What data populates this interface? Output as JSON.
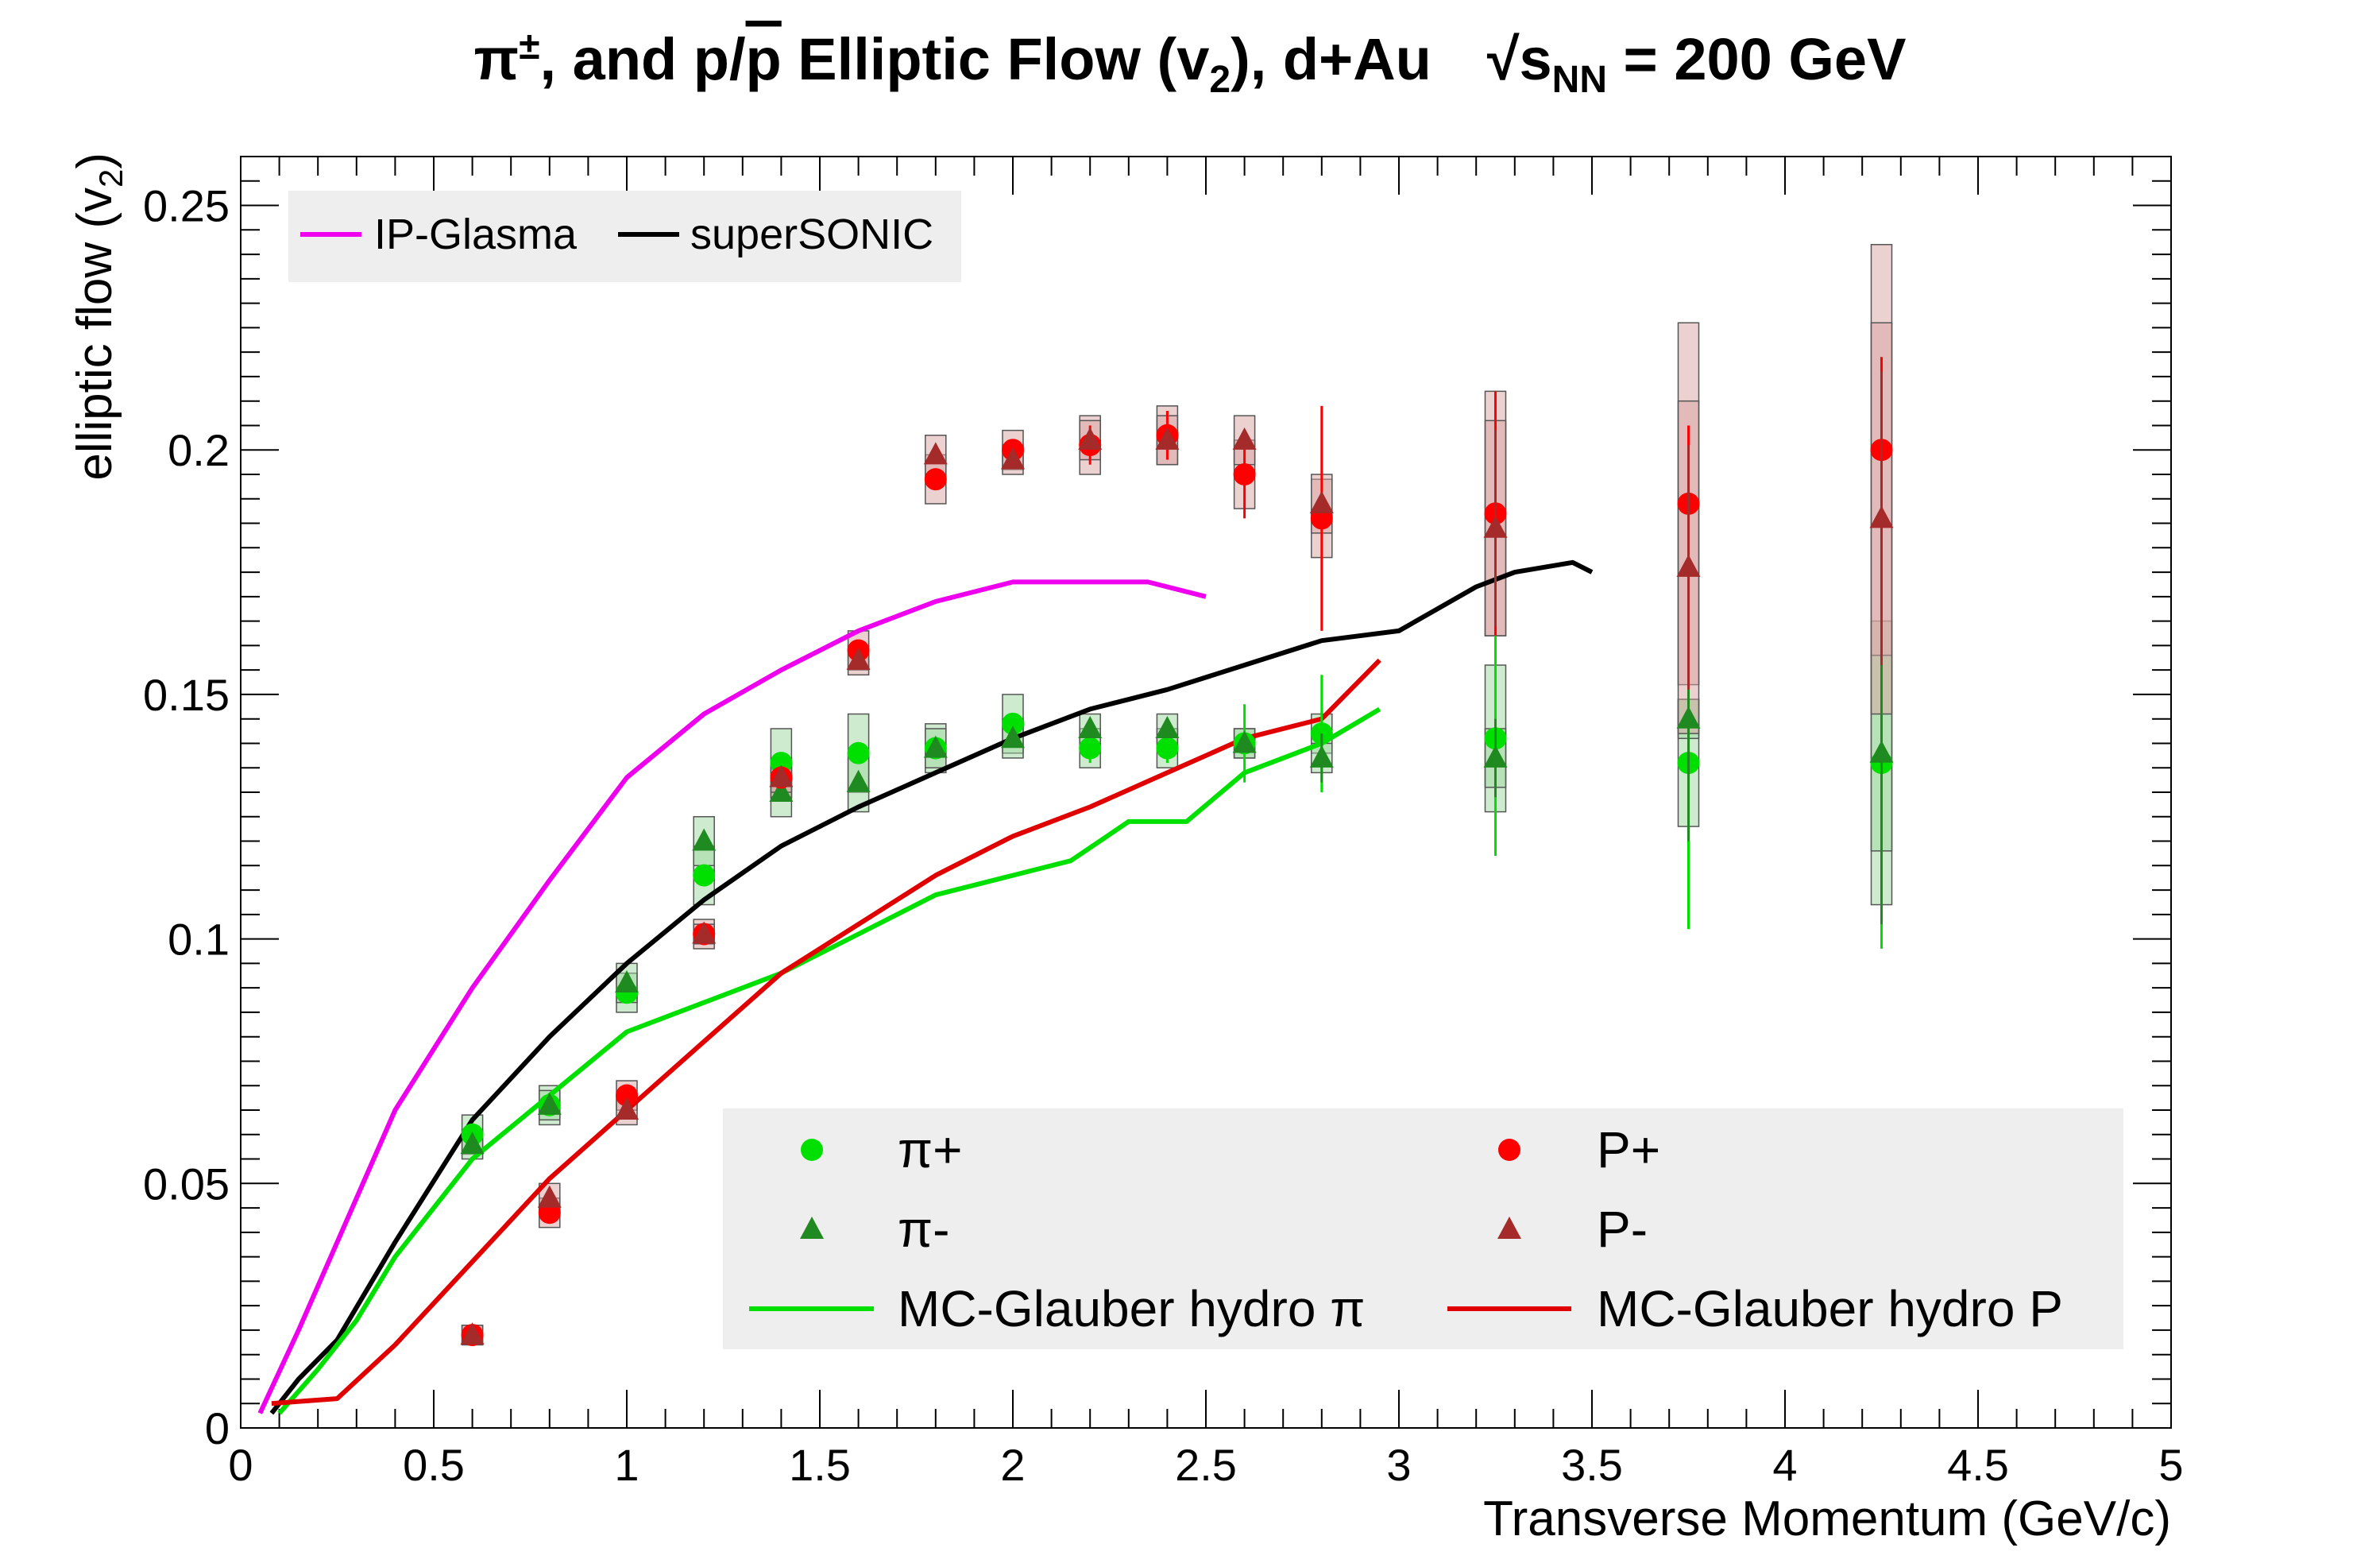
{
  "chart_data": {
    "type": "scatter",
    "title": {
      "part1": "π",
      "part1_sup": "±",
      "part2": ", and p/",
      "pbar": "p",
      "part3": " Elliptic Flow (v",
      "part3_sub": "2",
      "part4": "), d+Au",
      "energy_prefix": "√s",
      "energy_sub": "NN",
      "energy_suffix": " = 200 GeV"
    },
    "xlabel": "Transverse Momentum (GeV/c)",
    "ylabel": "elliptic flow (v",
    "ylabel_sub": "2",
    "ylabel_end": ")",
    "xlim": [
      0,
      5
    ],
    "ylim": [
      0,
      0.26
    ],
    "x_ticks": [
      "0",
      "0.5",
      "1",
      "1.5",
      "2",
      "2.5",
      "3",
      "3.5",
      "4",
      "4.5",
      "5"
    ],
    "y_ticks": [
      "0",
      "0.05",
      "0.1",
      "0.15",
      "0.2",
      "0.25"
    ],
    "grid": false,
    "colors": {
      "pi_plus": "#00e000",
      "pi_minus": "#1f8a1f",
      "p_plus": "#ff0000",
      "p_minus": "#a52a2a",
      "glauber_pi": "#00e000",
      "glauber_p": "#e00000",
      "ipglasma": "#ee00ee",
      "supersonic": "#000000",
      "sys_green": "#9fd89f",
      "sys_red": "#d9a3a3",
      "legend_bg": "#eeeeee"
    },
    "legend_top": {
      "placement": "top-left",
      "entries": [
        "IP-Glasma",
        "superSONIC"
      ]
    },
    "legend_bottom": {
      "placement": "bottom-right",
      "entries": [
        "π+",
        "π-",
        "MC-Glauber hydro π",
        "P+",
        "P-",
        "MC-Glauber hydro P"
      ]
    },
    "series": [
      {
        "name": "π+",
        "marker": "circle",
        "color": "#00e000",
        "points": [
          {
            "x": 0.6,
            "y": 0.06,
            "err": 0,
            "sys": 0.004
          },
          {
            "x": 0.8,
            "y": 0.066,
            "err": 0,
            "sys": 0.004
          },
          {
            "x": 1.0,
            "y": 0.089,
            "err": 0,
            "sys": 0.004
          },
          {
            "x": 1.2,
            "y": 0.113,
            "err": 0,
            "sys": 0.006
          },
          {
            "x": 1.4,
            "y": 0.136,
            "err": 0,
            "sys": 0.007
          },
          {
            "x": 1.6,
            "y": 0.138,
            "err": 0,
            "sys": 0.008
          },
          {
            "x": 1.8,
            "y": 0.139,
            "err": 0,
            "sys": 0.005
          },
          {
            "x": 2.0,
            "y": 0.144,
            "err": 0,
            "sys": 0.006
          },
          {
            "x": 2.2,
            "y": 0.139,
            "err": 0.003,
            "sys": 0.004
          },
          {
            "x": 2.4,
            "y": 0.139,
            "err": 0.003,
            "sys": 0.004
          },
          {
            "x": 2.6,
            "y": 0.14,
            "err": 0.008,
            "sys": 0.003
          },
          {
            "x": 2.8,
            "y": 0.142,
            "err": 0.012,
            "sys": 0.004
          },
          {
            "x": 3.25,
            "y": 0.141,
            "err": 0.024,
            "sys": 0.015
          },
          {
            "x": 3.75,
            "y": 0.136,
            "err": 0.034,
            "sys": 0.013
          },
          {
            "x": 4.25,
            "y": 0.136,
            "err": 0.038,
            "sys": 0.029
          }
        ]
      },
      {
        "name": "π-",
        "marker": "triangle",
        "color": "#1f8a1f",
        "points": [
          {
            "x": 0.6,
            "y": 0.058,
            "err": 0,
            "sys": 0.003
          },
          {
            "x": 0.8,
            "y": 0.066,
            "err": 0,
            "sys": 0.003
          },
          {
            "x": 1.0,
            "y": 0.091,
            "err": 0,
            "sys": 0.004
          },
          {
            "x": 1.2,
            "y": 0.12,
            "err": 0,
            "sys": 0.005
          },
          {
            "x": 1.4,
            "y": 0.13,
            "err": 0,
            "sys": 0.005
          },
          {
            "x": 1.6,
            "y": 0.132,
            "err": 0,
            "sys": 0.006
          },
          {
            "x": 1.8,
            "y": 0.139,
            "err": 0,
            "sys": 0.004
          },
          {
            "x": 2.0,
            "y": 0.141,
            "err": 0,
            "sys": 0.004
          },
          {
            "x": 2.2,
            "y": 0.143,
            "err": 0,
            "sys": 0.003
          },
          {
            "x": 2.4,
            "y": 0.143,
            "err": 0,
            "sys": 0.003
          },
          {
            "x": 2.6,
            "y": 0.14,
            "err": 0,
            "sys": 0.003
          },
          {
            "x": 2.8,
            "y": 0.137,
            "err": 0.005,
            "sys": 0.003
          },
          {
            "x": 3.25,
            "y": 0.137,
            "err": 0.008,
            "sys": 0.006
          },
          {
            "x": 3.75,
            "y": 0.145,
            "err": 0.025,
            "sys": 0.004
          },
          {
            "x": 4.25,
            "y": 0.138,
            "err": 0.035,
            "sys": 0.02
          }
        ]
      },
      {
        "name": "P+",
        "marker": "circle",
        "color": "#ff0000",
        "points": [
          {
            "x": 0.6,
            "y": 0.019,
            "err": 0,
            "sys": 0.002
          },
          {
            "x": 0.8,
            "y": 0.044,
            "err": 0,
            "sys": 0.003
          },
          {
            "x": 1.0,
            "y": 0.068,
            "err": 0,
            "sys": 0.003
          },
          {
            "x": 1.2,
            "y": 0.101,
            "err": 0,
            "sys": 0.003
          },
          {
            "x": 1.4,
            "y": 0.133,
            "err": 0,
            "sys": 0.004
          },
          {
            "x": 1.6,
            "y": 0.159,
            "err": 0,
            "sys": 0.004
          },
          {
            "x": 1.8,
            "y": 0.194,
            "err": 0,
            "sys": 0.005
          },
          {
            "x": 2.0,
            "y": 0.2,
            "err": 0,
            "sys": 0.004
          },
          {
            "x": 2.2,
            "y": 0.201,
            "err": 0.004,
            "sys": 0.006
          },
          {
            "x": 2.4,
            "y": 0.203,
            "err": 0.005,
            "sys": 0.006
          },
          {
            "x": 2.6,
            "y": 0.195,
            "err": 0.009,
            "sys": 0.007
          },
          {
            "x": 2.8,
            "y": 0.186,
            "err": 0.023,
            "sys": 0.008
          },
          {
            "x": 3.25,
            "y": 0.187,
            "err": 0.025,
            "sys": 0.025
          },
          {
            "x": 3.75,
            "y": 0.189,
            "err": 0.016,
            "sys": 0.037
          },
          {
            "x": 4.25,
            "y": 0.2,
            "err": 0.019,
            "sys": 0.042
          }
        ]
      },
      {
        "name": "P-",
        "marker": "triangle",
        "color": "#a52a2a",
        "points": [
          {
            "x": 0.6,
            "y": 0.019,
            "err": 0,
            "sys": 0.002
          },
          {
            "x": 0.8,
            "y": 0.047,
            "err": 0,
            "sys": 0.003
          },
          {
            "x": 1.0,
            "y": 0.065,
            "err": 0,
            "sys": 0.003
          },
          {
            "x": 1.2,
            "y": 0.101,
            "err": 0,
            "sys": 0.002
          },
          {
            "x": 1.4,
            "y": 0.133,
            "err": 0,
            "sys": 0.003
          },
          {
            "x": 1.6,
            "y": 0.157,
            "err": 0,
            "sys": 0.003
          },
          {
            "x": 1.8,
            "y": 0.199,
            "err": 0,
            "sys": 0.004
          },
          {
            "x": 2.0,
            "y": 0.198,
            "err": 0,
            "sys": 0.003
          },
          {
            "x": 2.2,
            "y": 0.202,
            "err": 0,
            "sys": 0.004
          },
          {
            "x": 2.4,
            "y": 0.202,
            "err": 0,
            "sys": 0.005
          },
          {
            "x": 2.6,
            "y": 0.202,
            "err": 0,
            "sys": 0.005
          },
          {
            "x": 2.8,
            "y": 0.189,
            "err": 0,
            "sys": 0.006
          },
          {
            "x": 3.25,
            "y": 0.184,
            "err": 0.02,
            "sys": 0.022
          },
          {
            "x": 3.75,
            "y": 0.176,
            "err": 0.025,
            "sys": 0.034
          },
          {
            "x": 4.25,
            "y": 0.186,
            "err": 0.03,
            "sys": 0.04
          }
        ]
      }
    ],
    "curves": [
      {
        "name": "IP-Glasma",
        "color": "#ee00ee",
        "x": [
          0.05,
          0.15,
          0.25,
          0.4,
          0.6,
          0.8,
          1.0,
          1.2,
          1.4,
          1.6,
          1.8,
          2.0,
          2.2,
          2.35,
          2.5
        ],
        "y": [
          0.003,
          0.02,
          0.038,
          0.065,
          0.09,
          0.112,
          0.133,
          0.146,
          0.155,
          0.163,
          0.169,
          0.173,
          0.173,
          0.173,
          0.17
        ]
      },
      {
        "name": "superSONIC",
        "color": "#000000",
        "x": [
          0.08,
          0.15,
          0.25,
          0.4,
          0.6,
          0.8,
          1.0,
          1.2,
          1.4,
          1.6,
          1.8,
          2.0,
          2.2,
          2.4,
          2.6,
          2.8,
          3.0,
          3.2,
          3.3,
          3.45,
          3.5
        ],
        "y": [
          0.003,
          0.01,
          0.018,
          0.038,
          0.063,
          0.08,
          0.095,
          0.108,
          0.119,
          0.127,
          0.134,
          0.141,
          0.147,
          0.151,
          0.156,
          0.161,
          0.163,
          0.172,
          0.175,
          0.177,
          0.175
        ]
      },
      {
        "name": "MC-Glauber hydro π",
        "color": "#00e000",
        "x": [
          0.1,
          0.2,
          0.3,
          0.4,
          0.6,
          0.8,
          1.0,
          1.2,
          1.4,
          1.6,
          1.8,
          2.0,
          2.15,
          2.3,
          2.45,
          2.6,
          2.8,
          2.95
        ],
        "y": [
          0.003,
          0.012,
          0.022,
          0.035,
          0.055,
          0.068,
          0.081,
          0.087,
          0.093,
          0.101,
          0.109,
          0.113,
          0.116,
          0.124,
          0.124,
          0.134,
          0.14,
          0.147
        ]
      },
      {
        "name": "MC-Glauber hydro P",
        "color": "#e00000",
        "x": [
          0.08,
          0.25,
          0.4,
          0.6,
          0.8,
          1.0,
          1.2,
          1.4,
          1.6,
          1.8,
          2.0,
          2.2,
          2.4,
          2.6,
          2.8,
          2.95
        ],
        "y": [
          0.005,
          0.006,
          0.017,
          0.034,
          0.051,
          0.065,
          0.079,
          0.093,
          0.103,
          0.113,
          0.121,
          0.127,
          0.134,
          0.141,
          0.145,
          0.157
        ]
      }
    ]
  }
}
